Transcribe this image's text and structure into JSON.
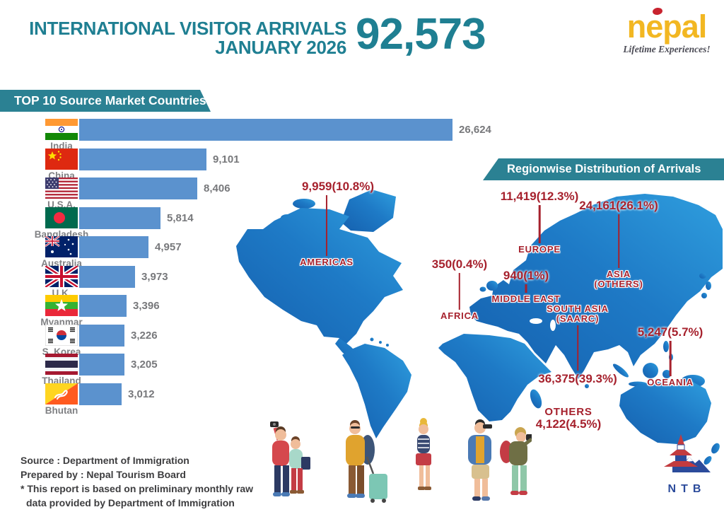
{
  "header": {
    "title_line1": "INTERNATIONAL VISITOR ARRIVALS",
    "title_line2": "JANUARY 2026",
    "total": "92,573",
    "brand_name": "nepal",
    "brand_tagline": "Lifetime Experiences!"
  },
  "top10": {
    "banner": "TOP 10 Source Market Countries",
    "items": [
      {
        "country": "India",
        "value": 26624,
        "value_display": "26,624",
        "flag_icon": "india-flag"
      },
      {
        "country": "China",
        "value": 9101,
        "value_display": "9,101",
        "flag_icon": "china-flag"
      },
      {
        "country": "U.S.A.",
        "value": 8406,
        "value_display": "8,406",
        "flag_icon": "usa-flag"
      },
      {
        "country": "Bangladesh",
        "value": 5814,
        "value_display": "5,814",
        "flag_icon": "bangladesh-flag"
      },
      {
        "country": "Australia",
        "value": 4957,
        "value_display": "4,957",
        "flag_icon": "australia-flag"
      },
      {
        "country": "U.K.",
        "value": 3973,
        "value_display": "3,973",
        "flag_icon": "uk-flag"
      },
      {
        "country": "Myanmar",
        "value": 3396,
        "value_display": "3,396",
        "flag_icon": "myanmar-flag"
      },
      {
        "country": "S. Korea",
        "value": 3226,
        "value_display": "3,226",
        "flag_icon": "south-korea-flag"
      },
      {
        "country": "Thailand",
        "value": 3205,
        "value_display": "3,205",
        "flag_icon": "thailand-flag"
      },
      {
        "country": "Bhutan",
        "value": 3012,
        "value_display": "3,012",
        "flag_icon": "bhutan-flag"
      }
    ]
  },
  "regions": {
    "banner": "Regionwise Distribution of Arrivals",
    "items": [
      {
        "name": "AMERICAS",
        "value_display": "9,959(10.8%)"
      },
      {
        "name": "EUROPE",
        "value_display": "11,419(12.3%)"
      },
      {
        "name": "ASIA\n(OTHERS)",
        "value_display": "24,161(26.1%)"
      },
      {
        "name": "AFRICA",
        "value_display": "350(0.4%)"
      },
      {
        "name": "MIDDLE EAST",
        "value_display": "940(1%)"
      },
      {
        "name": "SOUTH ASIA\n(SAARC)",
        "value_display": "36,375(39.3%)"
      },
      {
        "name": "OCEANIA",
        "value_display": "5,247(5.7%)"
      },
      {
        "name": "OTHERS",
        "value_display": "4,122(4.5%)"
      }
    ]
  },
  "footer": {
    "source": "Source : Department of Immigration",
    "prepared": "Prepared by : Nepal Tourism Board",
    "note": "* This report is based on preliminary monthly raw data provided by Department of Immigration"
  },
  "ntb_logo_text": "NTB",
  "colors": {
    "teal": "#1f7f92",
    "banner_teal": "#2b8193",
    "bar_blue": "#5b92ce",
    "label_red": "#a6212d",
    "gray_text": "#77787b",
    "nepal_yellow": "#f2b722",
    "map_blue_dark": "#1560ae",
    "map_blue_light": "#2f9ede"
  },
  "chart_data": [
    {
      "type": "bar",
      "orientation": "horizontal",
      "title": "TOP 10 Source Market Countries",
      "categories": [
        "India",
        "China",
        "U.S.A.",
        "Bangladesh",
        "Australia",
        "U.K.",
        "Myanmar",
        "S. Korea",
        "Thailand",
        "Bhutan"
      ],
      "values": [
        26624,
        9101,
        8406,
        5814,
        4957,
        3973,
        3396,
        3226,
        3205,
        3012
      ],
      "xlim": [
        0,
        26624
      ],
      "grid": false,
      "bar_color": "#5b92ce",
      "value_labels": [
        "26,624",
        "9,101",
        "8,406",
        "5,814",
        "4,957",
        "3,973",
        "3,396",
        "3,226",
        "3,205",
        "3,012"
      ]
    },
    {
      "type": "map",
      "title": "Regionwise Distribution of Arrivals",
      "subtitle": "International Visitor Arrivals January 2026",
      "total": 92573,
      "regions": [
        {
          "name": "AMERICAS",
          "value": 9959,
          "percent": 10.8
        },
        {
          "name": "EUROPE",
          "value": 11419,
          "percent": 12.3
        },
        {
          "name": "ASIA (OTHERS)",
          "value": 24161,
          "percent": 26.1
        },
        {
          "name": "AFRICA",
          "value": 350,
          "percent": 0.4
        },
        {
          "name": "MIDDLE EAST",
          "value": 940,
          "percent": 1.0
        },
        {
          "name": "SOUTH ASIA (SAARC)",
          "value": 36375,
          "percent": 39.3
        },
        {
          "name": "OCEANIA",
          "value": 5247,
          "percent": 5.7
        },
        {
          "name": "OTHERS",
          "value": 4122,
          "percent": 4.5
        }
      ]
    }
  ]
}
